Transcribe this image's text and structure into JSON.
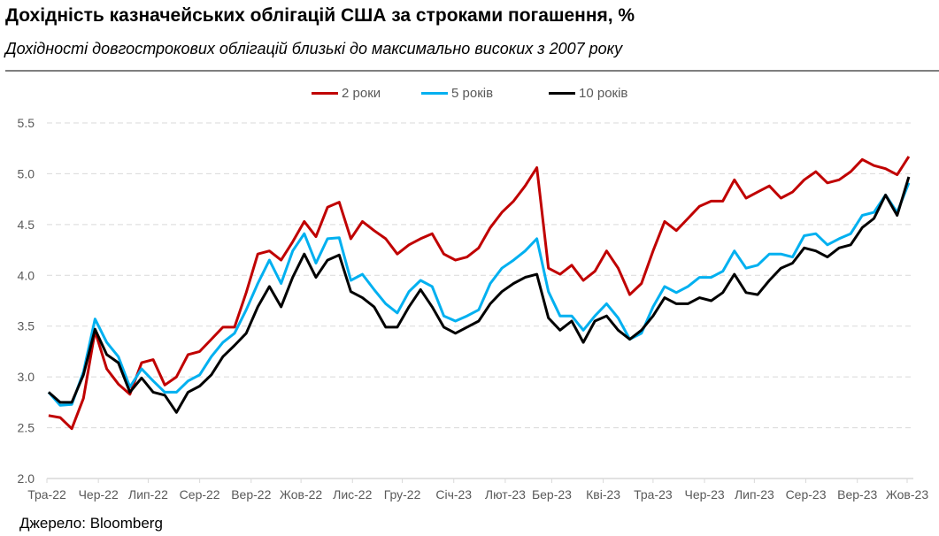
{
  "title": "Дохідність казначейських облігацій США за строками погашення, %",
  "subtitle": "Дохідності довгострокових облігацій близькі до максимально високих з 2007 року",
  "source": "Джерело: Bloomberg",
  "chart_data": {
    "type": "line",
    "title": "Дохідність казначейських облігацій США за строками погашення, %",
    "xlabel": "",
    "ylabel": "",
    "ylim": [
      2.0,
      5.5
    ],
    "yticks": [
      "2.0",
      "2.5",
      "3.0",
      "3.5",
      "4.0",
      "4.5",
      "5.0",
      "5.5"
    ],
    "grid": "horizontal dashed",
    "legend_position": "top-center",
    "xticks": [
      {
        "label": "Тра-22",
        "date": "2022-05-01"
      },
      {
        "label": "Чер-22",
        "date": "2022-06-01"
      },
      {
        "label": "Лип-22",
        "date": "2022-07-01"
      },
      {
        "label": "Сер-22",
        "date": "2022-08-01"
      },
      {
        "label": "Вер-22",
        "date": "2022-09-01"
      },
      {
        "label": "Жов-22",
        "date": "2022-10-01"
      },
      {
        "label": "Лис-22",
        "date": "2022-11-01"
      },
      {
        "label": "Гру-22",
        "date": "2022-12-01"
      },
      {
        "label": "Січ-23",
        "date": "2023-01-01"
      },
      {
        "label": "Лют-23",
        "date": "2023-02-01"
      },
      {
        "label": "Бер-23",
        "date": "2023-03-01"
      },
      {
        "label": "Кві-23",
        "date": "2023-04-01"
      },
      {
        "label": "Тра-23",
        "date": "2023-05-01"
      },
      {
        "label": "Чер-23",
        "date": "2023-06-01"
      },
      {
        "label": "Лип-23",
        "date": "2023-07-01"
      },
      {
        "label": "Сер-23",
        "date": "2023-08-01"
      },
      {
        "label": "Вер-23",
        "date": "2023-09-01"
      },
      {
        "label": "Жов-23",
        "date": "2023-10-01"
      }
    ],
    "x": [
      "2022-05-02",
      "2022-05-09",
      "2022-05-16",
      "2022-05-23",
      "2022-05-30",
      "2022-06-06",
      "2022-06-13",
      "2022-06-20",
      "2022-06-27",
      "2022-07-04",
      "2022-07-11",
      "2022-07-18",
      "2022-07-25",
      "2022-08-01",
      "2022-08-08",
      "2022-08-15",
      "2022-08-22",
      "2022-08-29",
      "2022-09-05",
      "2022-09-12",
      "2022-09-19",
      "2022-09-26",
      "2022-10-03",
      "2022-10-10",
      "2022-10-17",
      "2022-10-24",
      "2022-10-31",
      "2022-11-07",
      "2022-11-14",
      "2022-11-21",
      "2022-11-28",
      "2022-12-05",
      "2022-12-12",
      "2022-12-19",
      "2022-12-26",
      "2023-01-02",
      "2023-01-09",
      "2023-01-16",
      "2023-01-23",
      "2023-01-30",
      "2023-02-06",
      "2023-02-13",
      "2023-02-20",
      "2023-02-27",
      "2023-03-06",
      "2023-03-13",
      "2023-03-20",
      "2023-03-27",
      "2023-04-03",
      "2023-04-10",
      "2023-04-17",
      "2023-04-24",
      "2023-05-01",
      "2023-05-08",
      "2023-05-15",
      "2023-05-22",
      "2023-05-29",
      "2023-06-05",
      "2023-06-12",
      "2023-06-19",
      "2023-06-26",
      "2023-07-03",
      "2023-07-10",
      "2023-07-17",
      "2023-07-24",
      "2023-07-31",
      "2023-08-07",
      "2023-08-14",
      "2023-08-21",
      "2023-08-28",
      "2023-09-04",
      "2023-09-11",
      "2023-09-18",
      "2023-09-25",
      "2023-10-02"
    ],
    "series": [
      {
        "name": "2 роки",
        "color": "#c00000",
        "values": [
          2.62,
          2.6,
          2.49,
          2.79,
          3.45,
          3.08,
          2.93,
          2.83,
          3.14,
          3.17,
          2.92,
          3.0,
          3.22,
          3.25,
          3.37,
          3.49,
          3.49,
          3.83,
          4.21,
          4.24,
          4.15,
          4.33,
          4.53,
          4.38,
          4.67,
          4.72,
          4.36,
          4.53,
          4.44,
          4.36,
          4.21,
          4.3,
          4.36,
          4.41,
          4.21,
          4.15,
          4.18,
          4.27,
          4.47,
          4.62,
          4.73,
          4.88,
          5.06,
          4.07,
          4.01,
          4.1,
          3.95,
          4.04,
          4.24,
          4.07,
          3.81,
          3.92,
          4.24,
          4.53,
          4.44,
          4.56,
          4.68,
          4.73,
          4.73,
          4.94,
          4.76,
          4.82,
          4.88,
          4.76,
          4.82,
          4.94,
          5.02,
          4.91,
          4.94,
          5.02,
          5.14,
          5.08,
          5.05,
          4.99,
          5.17
        ]
      },
      {
        "name": "5 років",
        "color": "#00b0f0",
        "values": [
          2.85,
          2.72,
          2.73,
          3.05,
          3.57,
          3.34,
          3.2,
          2.9,
          3.08,
          2.96,
          2.85,
          2.85,
          2.96,
          3.02,
          3.2,
          3.34,
          3.43,
          3.66,
          3.92,
          4.15,
          3.92,
          4.24,
          4.41,
          4.12,
          4.36,
          4.37,
          3.95,
          4.01,
          3.86,
          3.72,
          3.63,
          3.84,
          3.95,
          3.89,
          3.6,
          3.55,
          3.6,
          3.66,
          3.92,
          4.07,
          4.15,
          4.24,
          4.36,
          3.84,
          3.6,
          3.6,
          3.46,
          3.6,
          3.72,
          3.58,
          3.37,
          3.43,
          3.69,
          3.89,
          3.83,
          3.89,
          3.98,
          3.98,
          4.04,
          4.24,
          4.07,
          4.1,
          4.21,
          4.21,
          4.18,
          4.39,
          4.41,
          4.3,
          4.36,
          4.41,
          4.59,
          4.62,
          4.79,
          4.62,
          4.91
        ]
      },
      {
        "name": "10 років",
        "color": "#000000",
        "values": [
          2.85,
          2.75,
          2.75,
          3.02,
          3.47,
          3.22,
          3.14,
          2.85,
          2.99,
          2.85,
          2.82,
          2.65,
          2.85,
          2.91,
          3.02,
          3.2,
          3.31,
          3.43,
          3.69,
          3.89,
          3.69,
          3.98,
          4.21,
          3.98,
          4.15,
          4.2,
          3.84,
          3.78,
          3.69,
          3.49,
          3.49,
          3.69,
          3.86,
          3.69,
          3.49,
          3.43,
          3.49,
          3.55,
          3.72,
          3.84,
          3.92,
          3.98,
          4.01,
          3.58,
          3.46,
          3.55,
          3.34,
          3.55,
          3.6,
          3.46,
          3.37,
          3.46,
          3.6,
          3.78,
          3.72,
          3.72,
          3.78,
          3.75,
          3.83,
          4.01,
          3.83,
          3.81,
          3.95,
          4.07,
          4.12,
          4.27,
          4.24,
          4.18,
          4.27,
          4.3,
          4.47,
          4.56,
          4.79,
          4.59,
          4.97
        ]
      }
    ]
  }
}
